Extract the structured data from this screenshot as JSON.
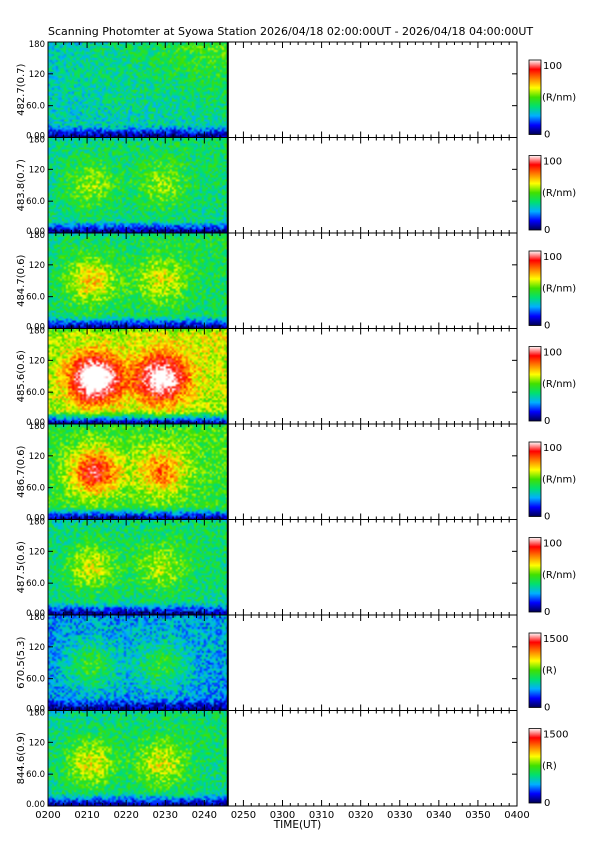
{
  "title": "Scanning Photomter at Syowa Station  2026/04/18 02:00:00UT - 2026/04/18 04:00:00UT",
  "chart_data": {
    "type": "heatmap",
    "xlabel": "TIME(UT)",
    "x_ticks": [
      "0200",
      "0210",
      "0220",
      "0230",
      "0240",
      "0250",
      "0300",
      "0310",
      "0320",
      "0330",
      "0340",
      "0350",
      "0400"
    ],
    "x_range": [
      "0200",
      "0400"
    ],
    "data_end": "0246",
    "y_ticks": [
      "0.00",
      "60.0",
      "120",
      "180"
    ],
    "y_range": [
      0,
      180
    ],
    "colormap": [
      "#000050",
      "#0000ff",
      "#00b0ff",
      "#00e070",
      "#40e000",
      "#ffff00",
      "#ff8000",
      "#ff0000",
      "#ffffff"
    ],
    "panels": [
      {
        "label": "482.7(0.7)",
        "unit": "(R/nm)",
        "cmax": "100",
        "cmin": "0",
        "blobs": [],
        "base": 0.32,
        "top_gain": 0.18
      },
      {
        "label": "483.8(0.7)",
        "unit": "(R/nm)",
        "cmax": "100",
        "cmin": "0",
        "blobs": [
          {
            "t": "0211",
            "a": 90,
            "amp": 0.18
          },
          {
            "t": "0229",
            "a": 90,
            "amp": 0.16
          }
        ],
        "base": 0.36,
        "top_gain": 0.05
      },
      {
        "label": "484.7(0.6)",
        "unit": "(R/nm)",
        "cmax": "100",
        "cmin": "0",
        "blobs": [
          {
            "t": "0211",
            "a": 90,
            "amp": 0.28
          },
          {
            "t": "0229",
            "a": 90,
            "amp": 0.22
          }
        ],
        "base": 0.38,
        "top_gain": 0.05
      },
      {
        "label": "485.6(0.6)",
        "unit": "(R/nm)",
        "cmax": "100",
        "cmin": "0",
        "blobs": [
          {
            "t": "0212",
            "a": 85,
            "amp": 0.62
          },
          {
            "t": "0229",
            "a": 85,
            "amp": 0.52
          }
        ],
        "base": 0.55,
        "top_gain": 0.08
      },
      {
        "label": "486.7(0.6)",
        "unit": "(R/nm)",
        "cmax": "100",
        "cmin": "0",
        "blobs": [
          {
            "t": "0212",
            "a": 90,
            "amp": 0.45
          },
          {
            "t": "0229",
            "a": 90,
            "amp": 0.32
          }
        ],
        "base": 0.44,
        "top_gain": 0.05
      },
      {
        "label": "487.5(0.6)",
        "unit": "(R/nm)",
        "cmax": "100",
        "cmin": "0",
        "blobs": [
          {
            "t": "0211",
            "a": 90,
            "amp": 0.24
          },
          {
            "t": "0229",
            "a": 90,
            "amp": 0.2
          }
        ],
        "base": 0.36,
        "top_gain": 0.05
      },
      {
        "label": "670.5(5.3)",
        "unit": "(R)",
        "cmax": "1500",
        "cmin": "0",
        "blobs": [
          {
            "t": "0211",
            "a": 85,
            "amp": 0.22
          },
          {
            "t": "0229",
            "a": 85,
            "amp": 0.2
          }
        ],
        "base": 0.24,
        "top_gain": 0.03
      },
      {
        "label": "844.6(0.9)",
        "unit": "(R)",
        "cmax": "1500",
        "cmin": "0",
        "blobs": [
          {
            "t": "0211",
            "a": 80,
            "amp": 0.26
          },
          {
            "t": "0229",
            "a": 80,
            "amp": 0.24
          }
        ],
        "base": 0.36,
        "top_gain": 0.05
      }
    ]
  }
}
